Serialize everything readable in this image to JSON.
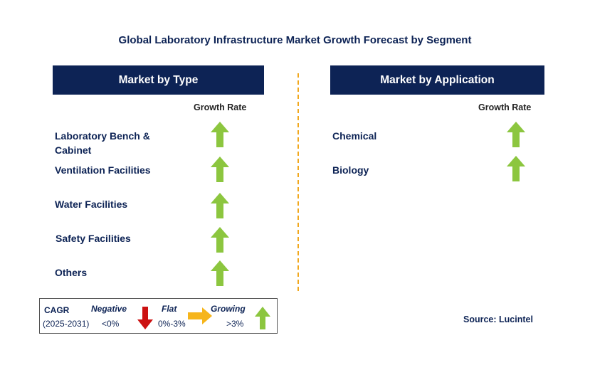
{
  "title": "Global Laboratory Infrastructure Market Growth Forecast by Segment",
  "left_panel": {
    "header": "Market by Type",
    "growth_rate_label": "Growth Rate",
    "rows": [
      {
        "label": "Laboratory Bench & Cabinet",
        "trend": "growing"
      },
      {
        "label": "Ventilation Facilities",
        "trend": "growing"
      },
      {
        "label": "Water Facilities",
        "trend": "growing"
      },
      {
        "label": "Safety Facilities",
        "trend": "growing"
      },
      {
        "label": "Others",
        "trend": "growing"
      }
    ]
  },
  "right_panel": {
    "header": "Market by Application",
    "growth_rate_label": "Growth Rate",
    "rows": [
      {
        "label": "Chemical",
        "trend": "growing"
      },
      {
        "label": "Biology",
        "trend": "growing"
      }
    ]
  },
  "legend": {
    "cagr_label": "CAGR",
    "period": "(2025-2031)",
    "negative_label": "Negative",
    "negative_range": "<0%",
    "flat_label": "Flat",
    "flat_range": "0%-3%",
    "growing_label": "Growing",
    "growing_range": ">3%"
  },
  "source": "Source: Lucintel",
  "colors": {
    "navy": "#0d2355",
    "growing_arrow": "#8cc63f",
    "negative_arrow": "#cc1111",
    "flat_arrow": "#f6b51b",
    "divider": "#f2a81d"
  },
  "icons": {
    "growing": "up-arrow-icon",
    "negative": "down-arrow-icon",
    "flat": "right-arrow-icon"
  }
}
